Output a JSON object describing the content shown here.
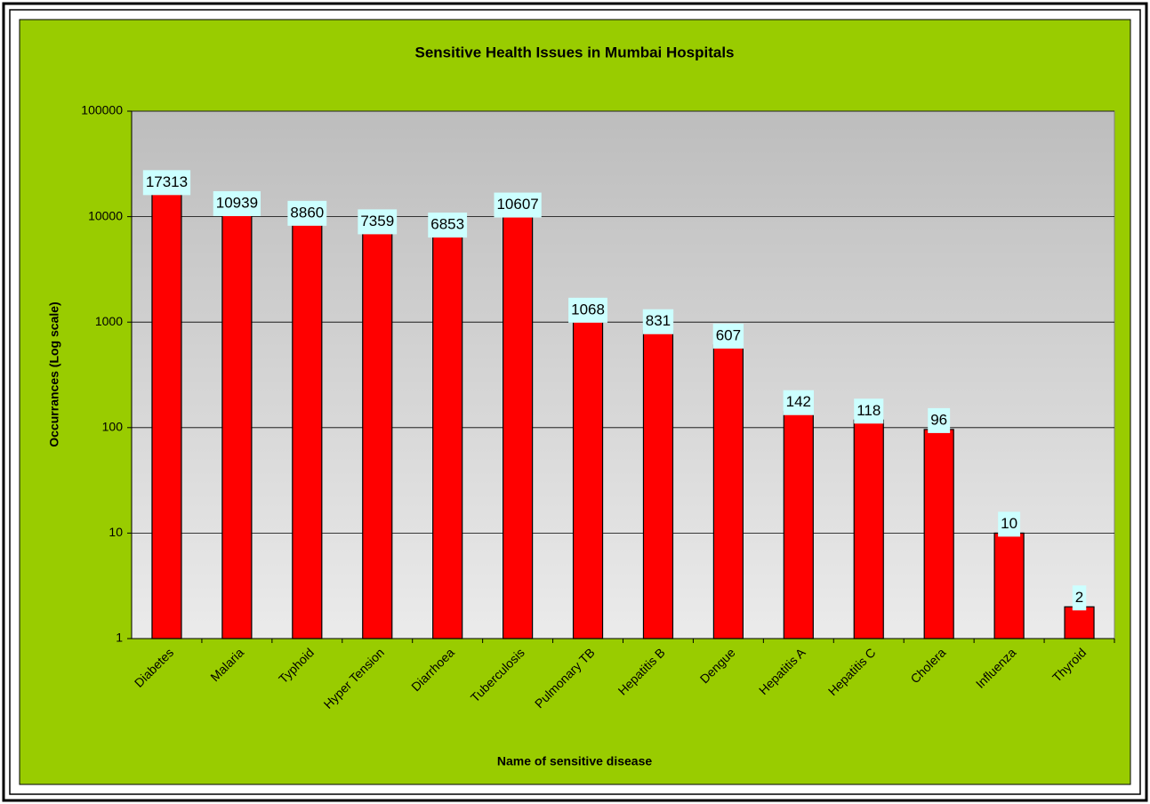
{
  "chart_data": {
    "type": "bar",
    "title": "Sensitive Health Issues in Mumbai Hospitals",
    "x_label": "Name of sensitive disease",
    "y_label": "Occurrances (Log scale)",
    "categories": [
      "Diabetes",
      "Malaria",
      "Typhoid",
      "Hyper Tension",
      "Diarrhoea",
      "Tuberculosis",
      "Pulmonary TB",
      "Hepatitis B",
      "Dengue",
      "Hepatitis A",
      "Hepatitis C",
      "Cholera",
      "Influenza",
      "Thyroid"
    ],
    "values": [
      17313,
      10939,
      8860,
      7359,
      6853,
      10607,
      1068,
      831,
      607,
      142,
      118,
      96,
      10,
      2
    ],
    "color": "#ff0000",
    "ylim": [
      1,
      100000
    ],
    "yticks": [
      1,
      10,
      100,
      1000,
      10000,
      100000
    ],
    "log_scale": true,
    "grid": true
  }
}
